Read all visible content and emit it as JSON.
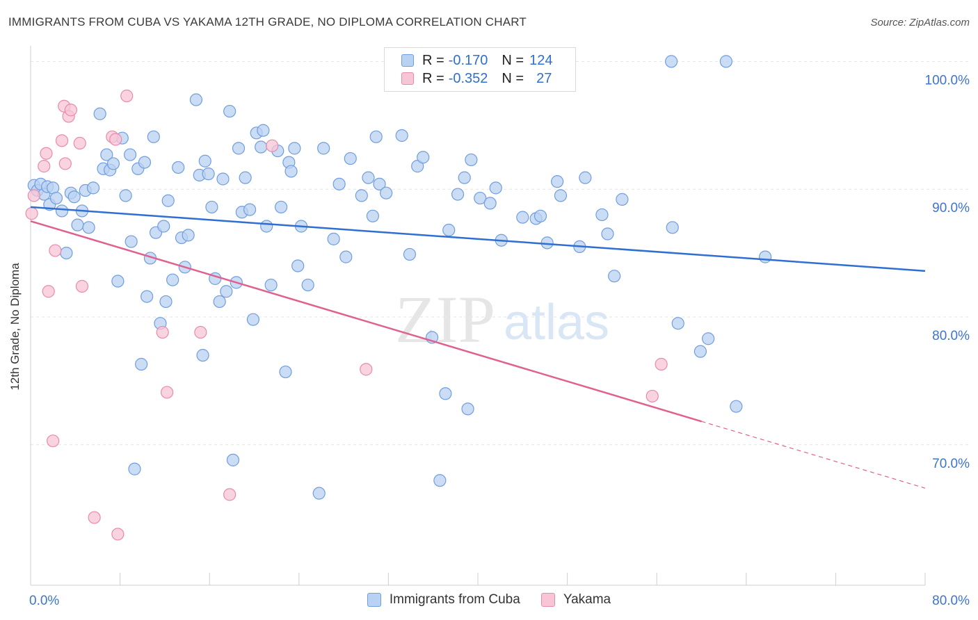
{
  "header": {
    "title": "IMMIGRANTS FROM CUBA VS YAKAMA 12TH GRADE, NO DIPLOMA CORRELATION CHART",
    "source": "Source: ZipAtlas.com"
  },
  "legend": {
    "rows": [
      {
        "r_label": "R =",
        "r_value": "-0.170",
        "n_label": "N =",
        "n_value": "124"
      },
      {
        "r_label": "R =",
        "r_value": "-0.352",
        "n_label": "N =",
        "n_value": "27"
      }
    ]
  },
  "bottom_legend": {
    "series1": "Immigrants from Cuba",
    "series2": "Yakama"
  },
  "colors": {
    "cuba_fill": "#b9d1f2",
    "cuba_stroke": "#6f9ddf",
    "cuba_line": "#2f6fd1",
    "yakama_fill": "#f7c5d6",
    "yakama_stroke": "#e88aac",
    "yakama_line": "#e0608f",
    "axis_text": "#3d74cf",
    "grid": "#e3e3e3"
  },
  "chart_data": {
    "type": "scatter",
    "xlabel": "",
    "ylabel": "12th Grade, No Diploma",
    "xlim": [
      0,
      80
    ],
    "ylim": [
      59,
      101
    ],
    "x_tick_labels": [
      {
        "value": 0,
        "label": "0.0%"
      },
      {
        "value": 80,
        "label": "80.0%"
      }
    ],
    "x_minor_ticks": [
      0,
      8,
      16,
      24,
      32,
      40,
      48,
      56,
      64,
      72,
      80
    ],
    "y_tick_labels": [
      {
        "value": 100,
        "label": "100.0%"
      },
      {
        "value": 90,
        "label": "90.0%"
      },
      {
        "value": 80,
        "label": "80.0%"
      },
      {
        "value": 70,
        "label": "70.0%"
      }
    ],
    "grid": true,
    "watermark": {
      "zip": "ZIP",
      "atlas": "atlas"
    },
    "series": [
      {
        "name": "Immigrants from Cuba",
        "trend": {
          "x": [
            0,
            80
          ],
          "y": [
            88.6,
            83.6
          ],
          "dashed_from": null
        },
        "points": [
          [
            0.3,
            90.3
          ],
          [
            0.6,
            89.9
          ],
          [
            0.9,
            90.4
          ],
          [
            1.2,
            89.6
          ],
          [
            1.5,
            90.2
          ],
          [
            1.7,
            88.8
          ],
          [
            2.0,
            90.1
          ],
          [
            2.3,
            89.3
          ],
          [
            2.8,
            88.3
          ],
          [
            3.2,
            85.0
          ],
          [
            3.6,
            89.7
          ],
          [
            3.9,
            89.4
          ],
          [
            4.2,
            87.2
          ],
          [
            4.6,
            88.3
          ],
          [
            4.9,
            89.9
          ],
          [
            5.2,
            87.0
          ],
          [
            5.6,
            90.1
          ],
          [
            6.2,
            95.9
          ],
          [
            6.5,
            91.6
          ],
          [
            6.8,
            92.7
          ],
          [
            7.1,
            91.5
          ],
          [
            7.4,
            92.0
          ],
          [
            7.8,
            82.8
          ],
          [
            8.2,
            94.0
          ],
          [
            8.5,
            89.5
          ],
          [
            8.9,
            92.7
          ],
          [
            9.0,
            85.9
          ],
          [
            9.3,
            68.1
          ],
          [
            9.6,
            91.6
          ],
          [
            9.9,
            76.3
          ],
          [
            10.2,
            92.1
          ],
          [
            10.4,
            81.6
          ],
          [
            10.7,
            84.6
          ],
          [
            11.0,
            94.1
          ],
          [
            11.2,
            86.6
          ],
          [
            11.6,
            79.5
          ],
          [
            11.9,
            87.1
          ],
          [
            12.1,
            81.2
          ],
          [
            12.3,
            89.1
          ],
          [
            12.7,
            82.9
          ],
          [
            13.2,
            91.7
          ],
          [
            13.5,
            86.2
          ],
          [
            13.8,
            83.9
          ],
          [
            14.1,
            86.4
          ],
          [
            14.8,
            97.0
          ],
          [
            15.1,
            91.1
          ],
          [
            15.4,
            77.0
          ],
          [
            15.6,
            92.2
          ],
          [
            15.9,
            91.2
          ],
          [
            16.2,
            88.6
          ],
          [
            16.5,
            83.0
          ],
          [
            16.9,
            81.2
          ],
          [
            17.2,
            90.8
          ],
          [
            17.5,
            82.0
          ],
          [
            17.8,
            96.1
          ],
          [
            18.1,
            68.8
          ],
          [
            18.4,
            82.7
          ],
          [
            18.6,
            93.2
          ],
          [
            18.9,
            88.2
          ],
          [
            19.2,
            90.9
          ],
          [
            19.6,
            88.4
          ],
          [
            19.9,
            79.8
          ],
          [
            20.2,
            94.4
          ],
          [
            20.6,
            93.3
          ],
          [
            20.8,
            94.6
          ],
          [
            21.1,
            87.1
          ],
          [
            21.5,
            82.5
          ],
          [
            22.1,
            93.0
          ],
          [
            22.4,
            88.6
          ],
          [
            22.8,
            75.7
          ],
          [
            23.1,
            92.1
          ],
          [
            23.3,
            91.4
          ],
          [
            23.6,
            93.2
          ],
          [
            23.9,
            84.0
          ],
          [
            24.2,
            87.1
          ],
          [
            24.8,
            82.5
          ],
          [
            25.8,
            66.2
          ],
          [
            26.2,
            93.2
          ],
          [
            27.1,
            86.1
          ],
          [
            27.6,
            90.4
          ],
          [
            28.2,
            84.7
          ],
          [
            28.6,
            92.4
          ],
          [
            29.6,
            89.5
          ],
          [
            30.2,
            90.9
          ],
          [
            30.6,
            87.9
          ],
          [
            30.9,
            94.1
          ],
          [
            31.2,
            90.4
          ],
          [
            31.8,
            89.7
          ],
          [
            33.2,
            94.2
          ],
          [
            33.9,
            84.9
          ],
          [
            34.6,
            91.8
          ],
          [
            35.1,
            92.5
          ],
          [
            35.9,
            78.4
          ],
          [
            36.6,
            67.2
          ],
          [
            37.1,
            74.0
          ],
          [
            37.4,
            86.8
          ],
          [
            38.2,
            89.6
          ],
          [
            38.8,
            90.9
          ],
          [
            39.1,
            72.8
          ],
          [
            39.4,
            92.3
          ],
          [
            40.2,
            89.3
          ],
          [
            41.1,
            88.9
          ],
          [
            41.6,
            90.1
          ],
          [
            42.1,
            86.0
          ],
          [
            44.0,
            87.8
          ],
          [
            45.2,
            87.7
          ],
          [
            45.6,
            87.9
          ],
          [
            46.2,
            85.8
          ],
          [
            47.1,
            90.6
          ],
          [
            47.4,
            89.5
          ],
          [
            49.1,
            85.5
          ],
          [
            49.6,
            90.9
          ],
          [
            51.1,
            88.0
          ],
          [
            51.6,
            86.5
          ],
          [
            52.2,
            83.2
          ],
          [
            52.9,
            89.2
          ],
          [
            57.4,
            87.0
          ],
          [
            57.9,
            79.5
          ],
          [
            59.9,
            77.3
          ],
          [
            60.6,
            78.3
          ],
          [
            63.1,
            73.0
          ],
          [
            57.3,
            100.0
          ],
          [
            62.2,
            100.0
          ],
          [
            65.7,
            84.7
          ]
        ]
      },
      {
        "name": "Yakama",
        "trend": {
          "x": [
            0,
            80
          ],
          "y": [
            87.5,
            66.6
          ],
          "dashed_from": 60
        },
        "points": [
          [
            0.1,
            88.1
          ],
          [
            0.3,
            89.5
          ],
          [
            1.2,
            91.8
          ],
          [
            1.4,
            92.8
          ],
          [
            1.6,
            82.0
          ],
          [
            2.0,
            70.3
          ],
          [
            2.2,
            85.2
          ],
          [
            2.8,
            93.8
          ],
          [
            3.0,
            96.5
          ],
          [
            3.1,
            92.0
          ],
          [
            3.4,
            95.7
          ],
          [
            3.6,
            96.2
          ],
          [
            4.4,
            93.6
          ],
          [
            4.6,
            82.4
          ],
          [
            5.7,
            64.3
          ],
          [
            7.3,
            94.1
          ],
          [
            7.6,
            93.9
          ],
          [
            7.8,
            63.0
          ],
          [
            8.6,
            97.3
          ],
          [
            11.8,
            78.8
          ],
          [
            12.2,
            74.1
          ],
          [
            15.2,
            78.8
          ],
          [
            17.8,
            66.1
          ],
          [
            21.6,
            93.4
          ],
          [
            30.0,
            75.9
          ],
          [
            55.6,
            73.8
          ],
          [
            56.4,
            76.3
          ]
        ]
      }
    ]
  }
}
